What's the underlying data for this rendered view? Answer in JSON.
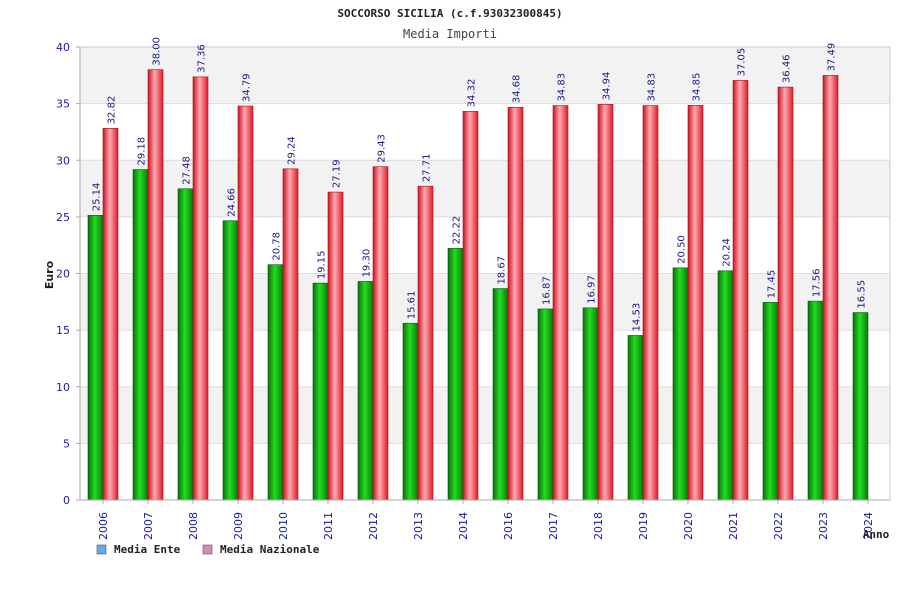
{
  "chart_data": {
    "type": "bar",
    "title": "SOCCORSO SICILIA (c.f.93032300845)",
    "subtitle": "Media Importi",
    "xlabel": "Anno",
    "ylabel": "Euro",
    "ylim": [
      0,
      40
    ],
    "yticks": [
      0,
      5,
      10,
      15,
      20,
      25,
      30,
      35,
      40
    ],
    "categories": [
      "2006",
      "2007",
      "2008",
      "2009",
      "2010",
      "2011",
      "2012",
      "2013",
      "2014",
      "2016",
      "2017",
      "2018",
      "2019",
      "2020",
      "2021",
      "2022",
      "2023",
      "2024"
    ],
    "series": [
      {
        "name": "Media Ente",
        "color": "#11aa11",
        "legend_color": "#66aaee",
        "values": [
          25.14,
          29.18,
          27.48,
          24.66,
          20.78,
          19.15,
          19.3,
          15.61,
          22.22,
          18.67,
          16.87,
          16.97,
          14.53,
          20.5,
          20.24,
          17.45,
          17.56,
          16.55
        ],
        "labels": [
          "25.14",
          "29.18",
          "27.48",
          "24.66",
          "20.78",
          "19.15",
          "19.30",
          "15.61",
          "22.22",
          "18.67",
          "16.87",
          "16.97",
          "14.53",
          "20.50",
          "20.24",
          "17.45",
          "17.56",
          "16.55"
        ]
      },
      {
        "name": "Media Nazionale",
        "color": "#ee2233",
        "legend_color": "#dd88bb",
        "values": [
          32.82,
          38.0,
          37.36,
          34.79,
          29.24,
          27.19,
          29.43,
          27.71,
          34.32,
          34.68,
          34.83,
          34.94,
          34.83,
          34.85,
          37.05,
          36.46,
          37.49,
          null
        ],
        "labels": [
          "32.82",
          "38.00",
          "37.36",
          "34.79",
          "29.24",
          "27.19",
          "29.43",
          "27.71",
          "34.32",
          "34.68",
          "34.83",
          "34.94",
          "34.83",
          "34.85",
          "37.05",
          "36.46",
          "37.49",
          null
        ]
      }
    ],
    "grid": true,
    "legend_position": "bottom-left"
  }
}
